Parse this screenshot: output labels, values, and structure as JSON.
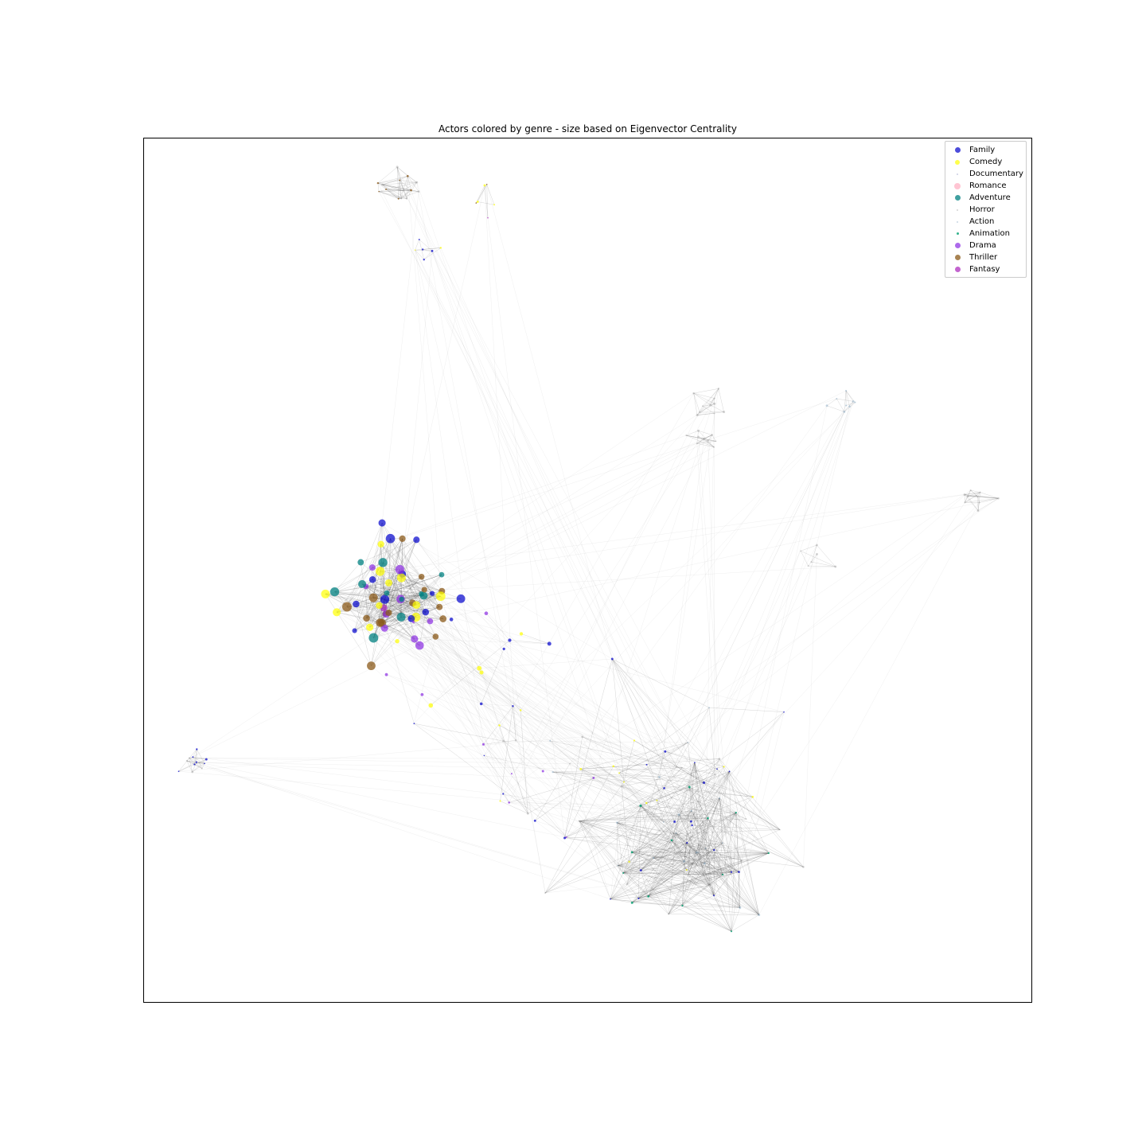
{
  "chart_data": {
    "type": "scatter",
    "subtype": "network-graph",
    "title": "Actors colored by genre - size based on Eigenvector Centrality",
    "xlabel": "",
    "ylabel": "",
    "axes_ticks": false,
    "grid": false,
    "legend_placement": "top-right",
    "genres": [
      {
        "name": "Family",
        "color": "#0000cc",
        "alpha": 0.7
      },
      {
        "name": "Comedy",
        "color": "#ffff00",
        "alpha": 0.7
      },
      {
        "name": "Documentary",
        "color": "#9aa0c8",
        "alpha": 0.5
      },
      {
        "name": "Romance",
        "color": "#ffb6c8",
        "alpha": 0.8
      },
      {
        "name": "Adventure",
        "color": "#008080",
        "alpha": 0.75
      },
      {
        "name": "Horror",
        "color": "#aaaaaa",
        "alpha": 0.5
      },
      {
        "name": "Action",
        "color": "#8fb0c8",
        "alpha": 0.5
      },
      {
        "name": "Animation",
        "color": "#00a070",
        "alpha": 0.8
      },
      {
        "name": "Drama",
        "color": "#8a2be2",
        "alpha": 0.7
      },
      {
        "name": "Thriller",
        "color": "#8b5a1a",
        "alpha": 0.75
      },
      {
        "name": "Fantasy",
        "color": "#aa22bb",
        "alpha": 0.7
      }
    ],
    "clusters": [
      {
        "id": "central-hub",
        "x": 0.28,
        "y": 0.53,
        "n": 60,
        "spread": 0.038,
        "genres": [
          "Adventure",
          "Drama",
          "Family",
          "Comedy",
          "Thriller",
          "Fantasy"
        ],
        "size": "large",
        "density": 0.18
      },
      {
        "id": "hub-tail",
        "x": 0.36,
        "y": 0.61,
        "n": 14,
        "spread": 0.05,
        "genres": [
          "Drama",
          "Comedy",
          "Family"
        ],
        "size": "small",
        "density": 0.1
      },
      {
        "id": "south-east-dense",
        "x": 0.61,
        "y": 0.83,
        "n": 45,
        "spread": 0.055,
        "genres": [
          "Horror",
          "Family",
          "Action",
          "Animation"
        ],
        "size": "tiny",
        "density": 0.35
      },
      {
        "id": "south-east-mid",
        "x": 0.6,
        "y": 0.74,
        "n": 40,
        "spread": 0.07,
        "genres": [
          "Horror",
          "Comedy",
          "Family",
          "Action"
        ],
        "size": "tiny",
        "density": 0.12
      },
      {
        "id": "south-middle",
        "x": 0.44,
        "y": 0.73,
        "n": 18,
        "spread": 0.04,
        "genres": [
          "Family",
          "Drama",
          "Horror",
          "Comedy"
        ],
        "size": "tiny",
        "density": 0.12
      },
      {
        "id": "west",
        "x": 0.06,
        "y": 0.72,
        "n": 12,
        "spread": 0.012,
        "genres": [
          "Horror",
          "Family"
        ],
        "size": "tiny",
        "density": 0.5
      },
      {
        "id": "north-top",
        "x": 0.29,
        "y": 0.06,
        "n": 14,
        "spread": 0.012,
        "genres": [
          "Horror",
          "Thriller"
        ],
        "size": "tiny",
        "density": 0.55
      },
      {
        "id": "north-right",
        "x": 0.38,
        "y": 0.072,
        "n": 6,
        "spread": 0.012,
        "genres": [
          "Thriller",
          "Fantasy",
          "Comedy"
        ],
        "size": "tiny",
        "density": 0.5
      },
      {
        "id": "north-lower",
        "x": 0.32,
        "y": 0.125,
        "n": 6,
        "spread": 0.008,
        "genres": [
          "Family",
          "Comedy"
        ],
        "size": "tiny",
        "density": 0.5
      },
      {
        "id": "north-east-a",
        "x": 0.63,
        "y": 0.31,
        "n": 10,
        "spread": 0.012,
        "genres": [
          "Horror"
        ],
        "size": "tiny",
        "density": 0.5
      },
      {
        "id": "north-east-b",
        "x": 0.63,
        "y": 0.35,
        "n": 10,
        "spread": 0.012,
        "genres": [
          "Horror"
        ],
        "size": "tiny",
        "density": 0.5
      },
      {
        "id": "north-east-c",
        "x": 0.79,
        "y": 0.31,
        "n": 8,
        "spread": 0.01,
        "genres": [
          "Action"
        ],
        "size": "tiny",
        "density": 0.5
      },
      {
        "id": "east",
        "x": 0.93,
        "y": 0.42,
        "n": 10,
        "spread": 0.01,
        "genres": [
          "Horror"
        ],
        "size": "tiny",
        "density": 0.55
      },
      {
        "id": "mid-east",
        "x": 0.76,
        "y": 0.48,
        "n": 6,
        "spread": 0.012,
        "genres": [
          "Horror"
        ],
        "size": "tiny",
        "density": 0.5
      }
    ]
  }
}
